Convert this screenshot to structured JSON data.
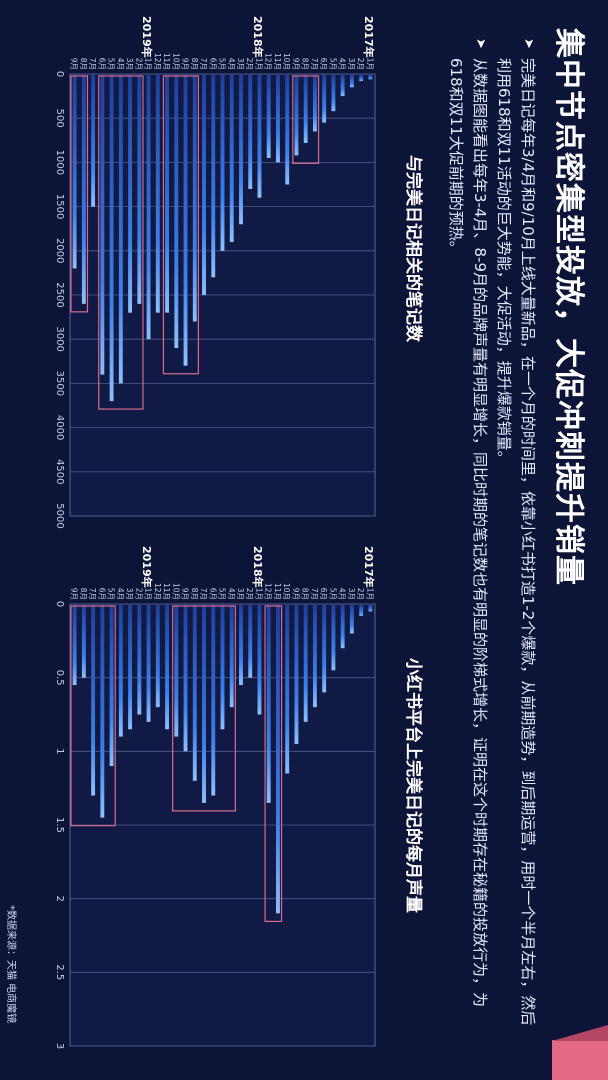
{
  "title": "集中节点密集型投放，大促冲刺提升销量",
  "bullets": [
    "完美日记每年3/4月和9/10月上线大量新品，在一个月的时间里，依靠小红书打造1-2个爆款，从前期造势，到后期运营，用时一个半月左右，然后利用618和双11活动的巨大势能，大促活动，提升爆款销量。",
    "从数据图能看出每年3-4月、8-9月的品牌声量有明显增长，同比时期的笔记数也有明显的阶梯式增长，证明在这个时期存在秘籍的投放行为，为618和双11大促前期的预热。"
  ],
  "source": "*数据来源：天猫 电商魔镜",
  "colors": {
    "background": "#0c1538",
    "bar": "#3d7fe8",
    "bar_light": "#8ec0ff",
    "highlight_box": "#d96c8a",
    "accent": "#e26a84"
  },
  "chart_data": [
    {
      "type": "bar",
      "orientation": "horizontal",
      "title": "与完美日记相关的笔记数",
      "categories": [
        "1月",
        "2月",
        "3月",
        "4月",
        "5月",
        "6月",
        "7月",
        "8月",
        "9月",
        "10月",
        "11月",
        "12月",
        "1月",
        "2月",
        "3月",
        "4月",
        "5月",
        "6月",
        "7月",
        "8月",
        "9月",
        "10月",
        "11月",
        "12月",
        "1月",
        "2月",
        "3月",
        "4月",
        "5月",
        "6月",
        "7月",
        "8月",
        "9月"
      ],
      "year_labels": [
        {
          "label": "2017年",
          "start_index": 0
        },
        {
          "label": "2018年",
          "start_index": 12
        },
        {
          "label": "2019年",
          "start_index": 24
        }
      ],
      "values": [
        60,
        80,
        150,
        250,
        420,
        550,
        650,
        780,
        920,
        1250,
        1000,
        950,
        1400,
        1300,
        1700,
        1900,
        2000,
        2300,
        2500,
        2800,
        3300,
        3100,
        2700,
        2700,
        3000,
        2600,
        2700,
        3500,
        3700,
        3400,
        1500,
        2600,
        2200
      ],
      "xlim": [
        0,
        5000
      ],
      "ticks": [
        0,
        500,
        1000,
        1500,
        2000,
        2500,
        3000,
        3500,
        4000,
        4500,
        5000
      ],
      "grid": true,
      "highlight_ranges": [
        [
          6,
          8
        ],
        [
          19,
          22
        ],
        [
          25,
          29
        ],
        [
          31,
          32
        ]
      ]
    },
    {
      "type": "bar",
      "orientation": "horizontal",
      "title": "小红书平台上完美日记的每月声量",
      "categories": [
        "1月",
        "2月",
        "3月",
        "4月",
        "5月",
        "6月",
        "7月",
        "8月",
        "9月",
        "10月",
        "11月",
        "12月",
        "1月",
        "2月",
        "3月",
        "4月",
        "5月",
        "6月",
        "7月",
        "8月",
        "9月",
        "10月",
        "11月",
        "12月",
        "1月",
        "2月",
        "3月",
        "4月",
        "5月",
        "6月",
        "7月",
        "8月",
        "9月"
      ],
      "year_labels": [
        {
          "label": "2017年",
          "start_index": 0
        },
        {
          "label": "2018年",
          "start_index": 12
        },
        {
          "label": "2019年",
          "start_index": 24
        }
      ],
      "values": [
        0.05,
        0.08,
        0.2,
        0.3,
        0.45,
        0.6,
        0.7,
        0.8,
        0.95,
        1.15,
        2.1,
        1.35,
        0.75,
        0.5,
        0.55,
        0.7,
        0.85,
        1.3,
        1.35,
        1.2,
        1.0,
        0.9,
        0.85,
        0.7,
        0.8,
        0.75,
        0.85,
        0.9,
        1.1,
        1.45,
        1.3,
        0.5,
        0.55
      ],
      "xlim": [
        0,
        3
      ],
      "ticks": [
        0,
        0.5,
        1,
        1.5,
        2,
        2.5,
        3
      ],
      "grid": true,
      "highlight_ranges": [
        [
          10,
          11
        ],
        [
          15,
          21
        ],
        [
          28,
          32
        ]
      ]
    }
  ]
}
